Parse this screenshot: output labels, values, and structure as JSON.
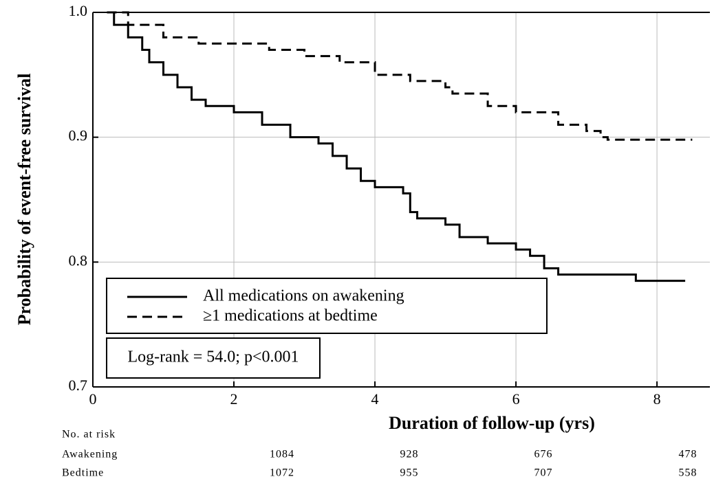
{
  "chart_data": {
    "type": "step",
    "y_label": "Probability of event-free survival",
    "x_label": "Duration of follow-up (yrs)",
    "xlim": [
      0,
      8.75
    ],
    "ylim": [
      0.7,
      1.0
    ],
    "xticks": [
      0,
      2,
      4,
      6,
      8
    ],
    "yticks": [
      {
        "value": 0.7,
        "label": "0.7"
      },
      {
        "value": 0.8,
        "label": "0.8"
      },
      {
        "value": 0.9,
        "label": "0.9"
      },
      {
        "value": 1.0,
        "label": "1.0"
      }
    ],
    "grid": true,
    "series": [
      {
        "name": "All medications on awakening",
        "color": "#000000",
        "dash": "solid",
        "x": [
          0.2,
          0.3,
          0.5,
          0.7,
          0.8,
          1.0,
          1.2,
          1.4,
          1.6,
          2.0,
          2.4,
          2.8,
          3.2,
          3.4,
          3.6,
          3.8,
          4.0,
          4.4,
          4.5,
          4.6,
          5.0,
          5.2,
          5.6,
          6.0,
          6.2,
          6.4,
          6.6,
          7.0,
          7.7,
          8.4
        ],
        "values": [
          1.0,
          0.99,
          0.98,
          0.97,
          0.96,
          0.95,
          0.94,
          0.93,
          0.925,
          0.92,
          0.91,
          0.9,
          0.895,
          0.885,
          0.875,
          0.865,
          0.86,
          0.855,
          0.84,
          0.835,
          0.83,
          0.82,
          0.815,
          0.81,
          0.805,
          0.795,
          0.79,
          0.79,
          0.785,
          0.785
        ]
      },
      {
        "name": "≥1 medications at bedtime",
        "color": "#000000",
        "dash": "dashed",
        "x": [
          0.2,
          0.5,
          1.0,
          1.5,
          2.0,
          2.5,
          3.0,
          3.5,
          4.0,
          4.5,
          5.0,
          5.1,
          5.6,
          6.0,
          6.6,
          7.0,
          7.2,
          7.3,
          8.5
        ],
        "values": [
          1.0,
          0.99,
          0.98,
          0.975,
          0.975,
          0.97,
          0.965,
          0.96,
          0.95,
          0.945,
          0.94,
          0.935,
          0.925,
          0.92,
          0.91,
          0.905,
          0.9,
          0.898,
          0.898
        ]
      }
    ],
    "annotation": "Log-rank = 54.0; p<0.001",
    "at_risk": {
      "title": "No. at risk",
      "rows": [
        {
          "label": "Awakening",
          "values": [
            "1084",
            "928",
            "676",
            "478"
          ]
        },
        {
          "label": "Bedtime",
          "values": [
            "1072",
            "955",
            "707",
            "558"
          ]
        }
      ]
    }
  }
}
